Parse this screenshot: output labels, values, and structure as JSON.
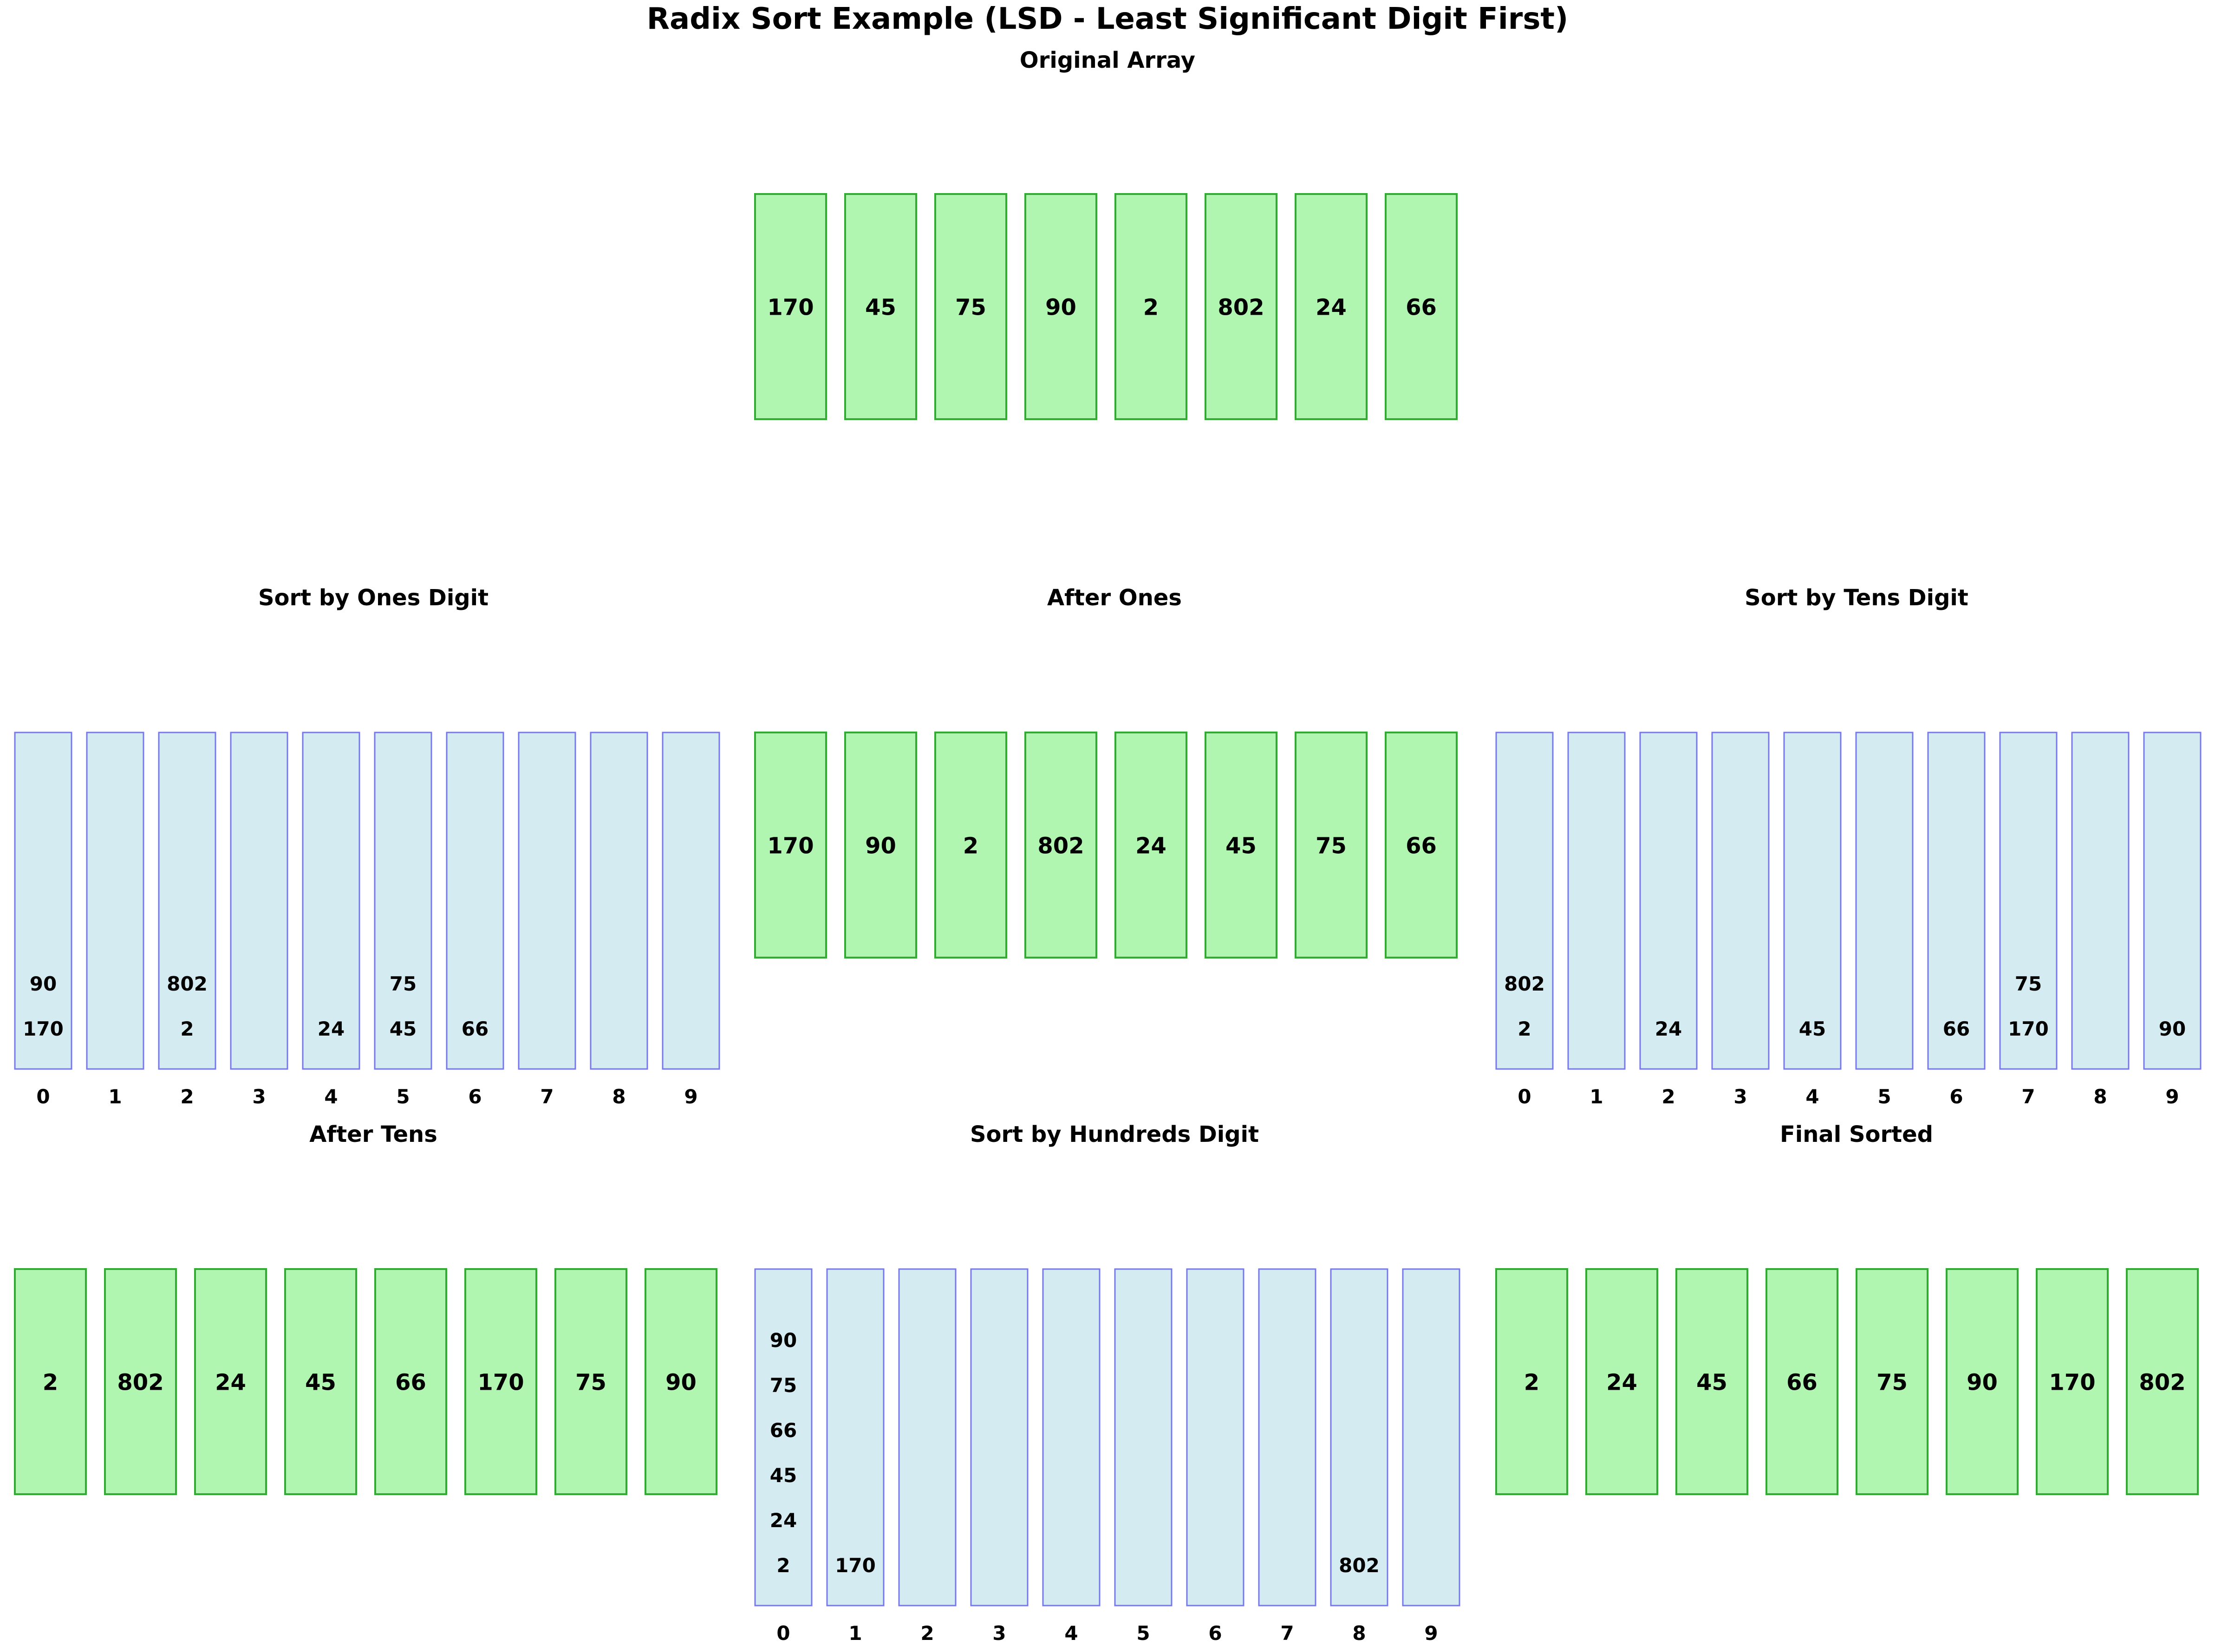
{
  "title": "Radix Sort Example (LSD - Least Significant Digit First)",
  "colors": {
    "array_fill": "#b0f5b0",
    "array_stroke": "#33aa33",
    "bucket_fill": "#d5ebf2",
    "bucket_stroke": "#7777ee",
    "text": "#000000"
  },
  "panels": [
    {
      "id": "original",
      "title": "Original Array",
      "kind": "array",
      "values": [
        "170",
        "45",
        "75",
        "90",
        "2",
        "802",
        "24",
        "66"
      ]
    },
    {
      "id": "sort-ones",
      "title": "Sort by Ones Digit",
      "kind": "buckets",
      "bucket_labels": [
        "0",
        "1",
        "2",
        "3",
        "4",
        "5",
        "6",
        "7",
        "8",
        "9"
      ],
      "buckets": [
        [
          "170",
          "90"
        ],
        [],
        [
          "2",
          "802"
        ],
        [],
        [
          "24"
        ],
        [
          "45",
          "75"
        ],
        [
          "66"
        ],
        [],
        [],
        []
      ]
    },
    {
      "id": "after-ones",
      "title": "After Ones",
      "kind": "array",
      "values": [
        "170",
        "90",
        "2",
        "802",
        "24",
        "45",
        "75",
        "66"
      ]
    },
    {
      "id": "sort-tens",
      "title": "Sort by Tens Digit",
      "kind": "buckets",
      "bucket_labels": [
        "0",
        "1",
        "2",
        "3",
        "4",
        "5",
        "6",
        "7",
        "8",
        "9"
      ],
      "buckets": [
        [
          "2",
          "802"
        ],
        [],
        [
          "24"
        ],
        [],
        [
          "45"
        ],
        [],
        [
          "66"
        ],
        [
          "170",
          "75"
        ],
        [],
        [
          "90"
        ]
      ]
    },
    {
      "id": "after-tens",
      "title": "After Tens",
      "kind": "array",
      "values": [
        "2",
        "802",
        "24",
        "45",
        "66",
        "170",
        "75",
        "90"
      ]
    },
    {
      "id": "sort-hundreds",
      "title": "Sort by Hundreds Digit",
      "kind": "buckets",
      "bucket_labels": [
        "0",
        "1",
        "2",
        "3",
        "4",
        "5",
        "6",
        "7",
        "8",
        "9"
      ],
      "buckets": [
        [
          "2",
          "24",
          "45",
          "66",
          "75",
          "90"
        ],
        [
          "170"
        ],
        [],
        [],
        [],
        [],
        [],
        [],
        [
          "802"
        ],
        []
      ]
    },
    {
      "id": "final",
      "title": "Final Sorted",
      "kind": "array",
      "values": [
        "2",
        "24",
        "45",
        "66",
        "75",
        "90",
        "170",
        "802"
      ]
    }
  ]
}
